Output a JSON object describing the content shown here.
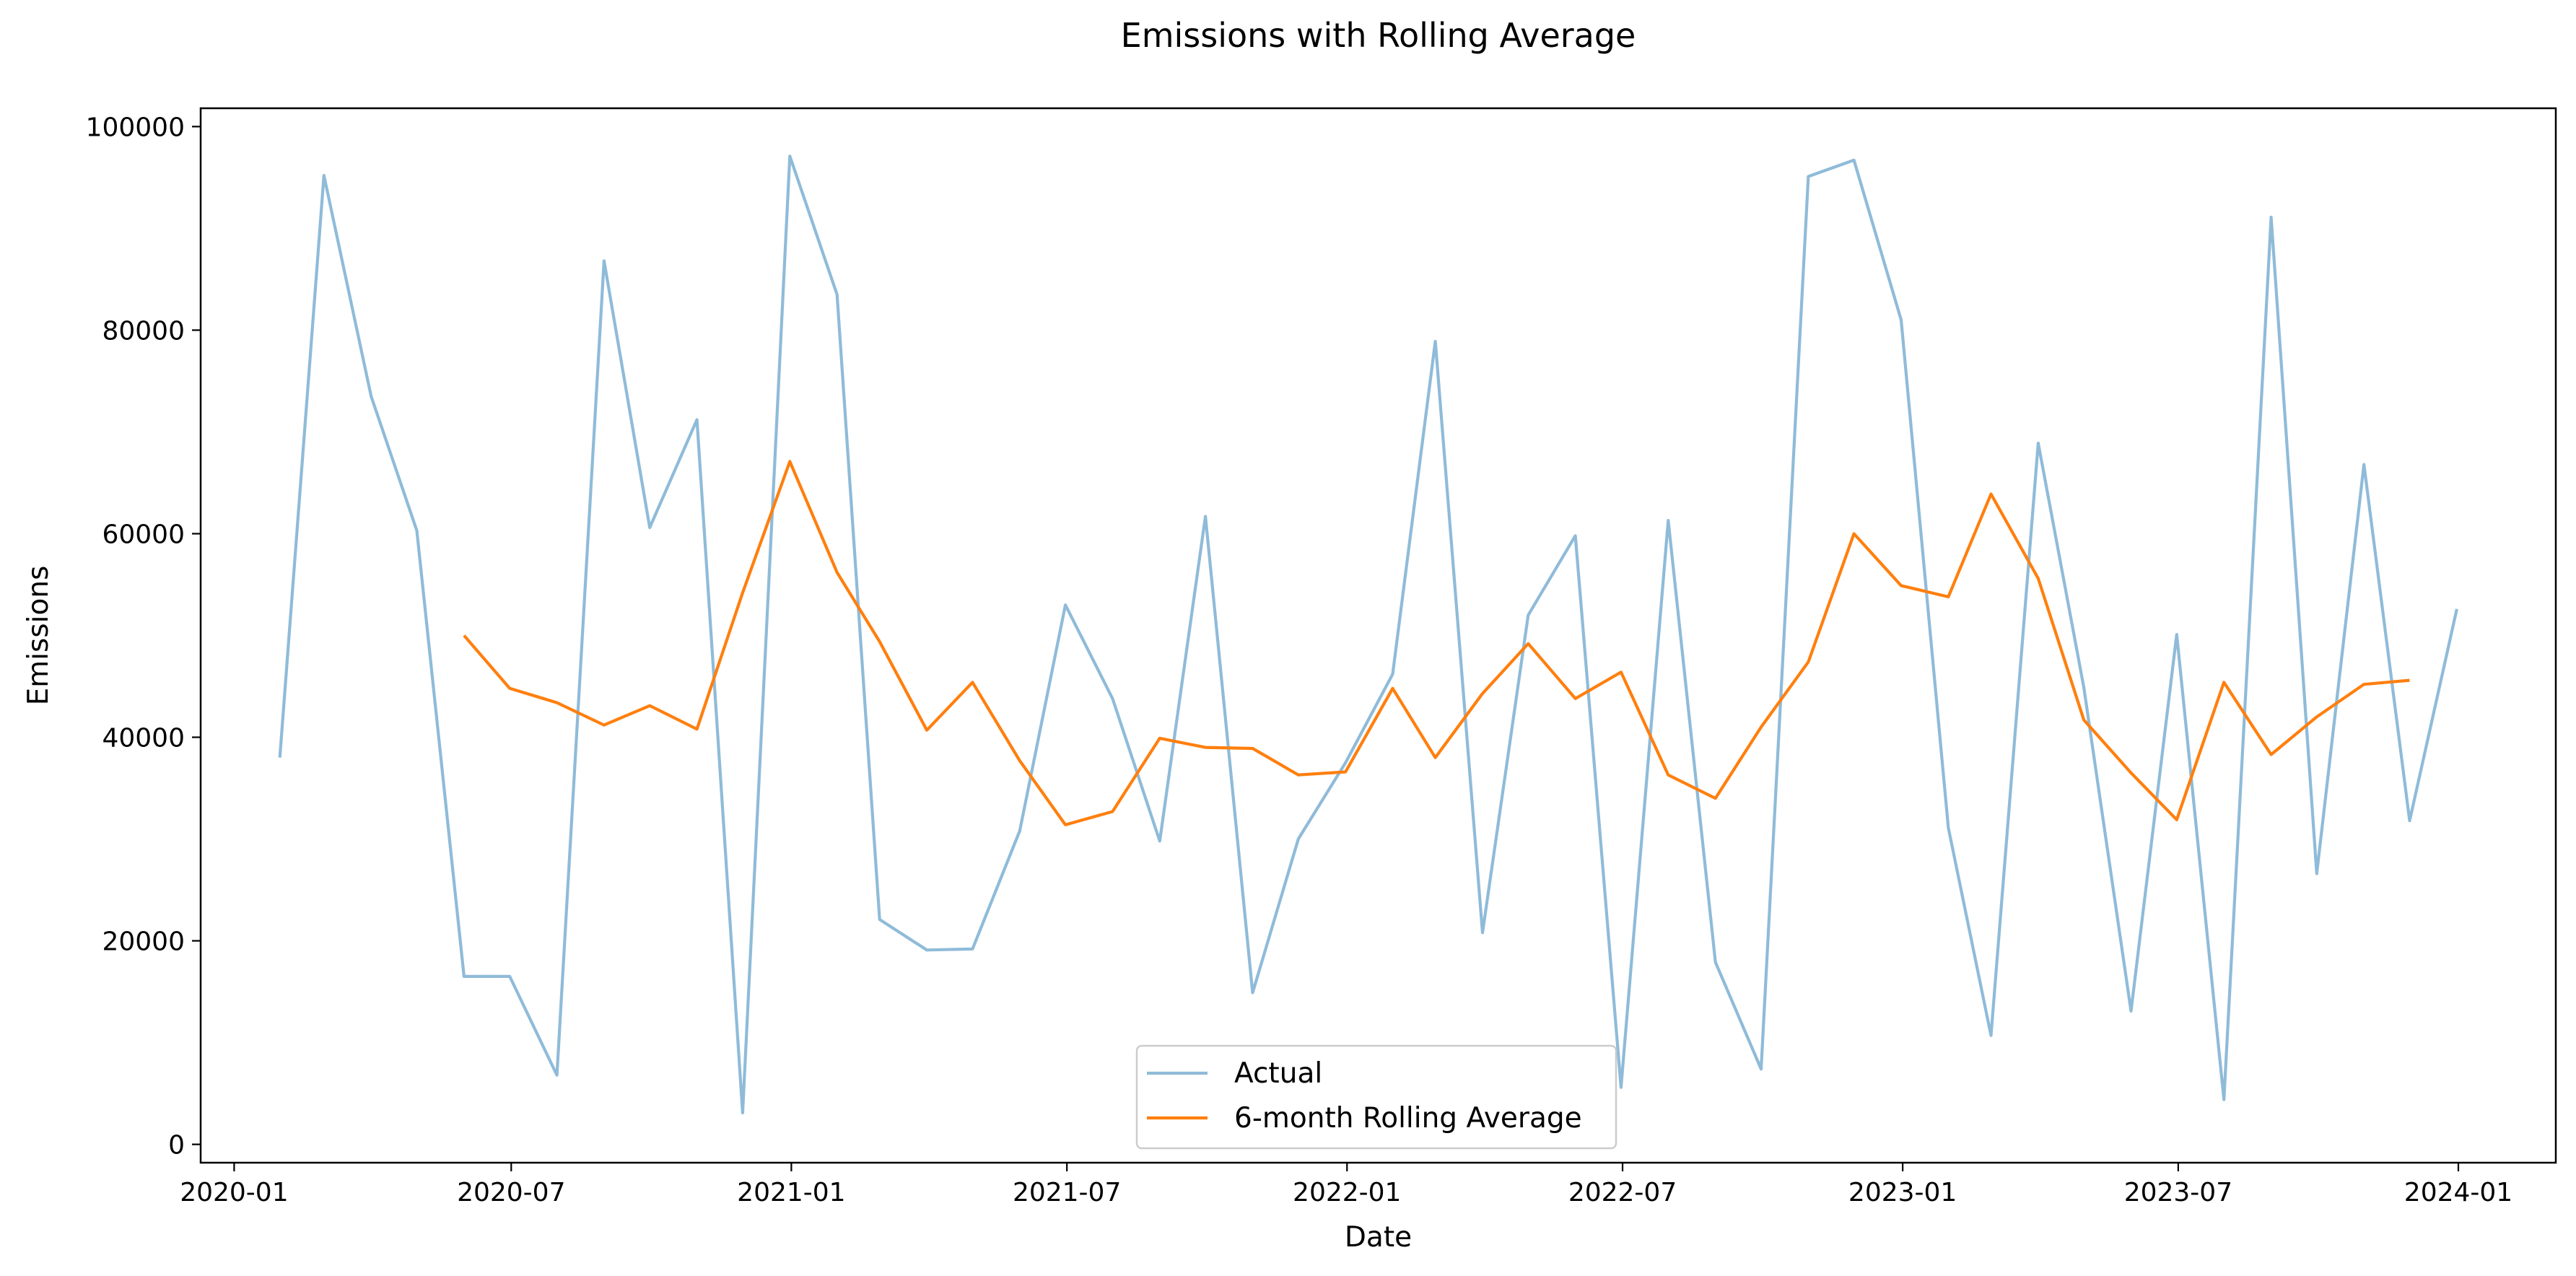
{
  "chart_data": {
    "type": "line",
    "title": "Emissions with Rolling Average",
    "xlabel": "Date",
    "ylabel": "Emissions",
    "x_ticks": [
      "2020-01",
      "2020-07",
      "2021-01",
      "2021-07",
      "2022-01",
      "2022-07",
      "2023-01",
      "2023-07",
      "2024-01"
    ],
    "y_ticks": [
      0,
      20000,
      40000,
      60000,
      80000,
      100000
    ],
    "xlim": [
      "2019-12-10",
      "2024-03-05"
    ],
    "ylim": [
      -1800,
      101800
    ],
    "grid": false,
    "legend_position": "lower-center",
    "x": [
      "2020-01-31",
      "2020-02-29",
      "2020-03-31",
      "2020-04-30",
      "2020-05-31",
      "2020-06-30",
      "2020-07-31",
      "2020-08-31",
      "2020-09-30",
      "2020-10-31",
      "2020-11-30",
      "2020-12-31",
      "2021-01-31",
      "2021-02-28",
      "2021-03-31",
      "2021-04-30",
      "2021-05-31",
      "2021-06-30",
      "2021-07-31",
      "2021-08-31",
      "2021-09-30",
      "2021-10-31",
      "2021-11-30",
      "2021-12-31",
      "2022-01-31",
      "2022-02-28",
      "2022-03-31",
      "2022-04-30",
      "2022-05-31",
      "2022-06-30",
      "2022-07-31",
      "2022-08-31",
      "2022-09-30",
      "2022-10-31",
      "2022-11-30",
      "2022-12-31",
      "2023-01-31",
      "2023-02-28",
      "2023-03-31",
      "2023-04-30",
      "2023-05-31",
      "2023-06-30",
      "2023-07-31",
      "2023-08-31",
      "2023-09-30",
      "2023-10-31",
      "2023-11-30",
      "2023-12-31"
    ],
    "series": [
      {
        "name": "Actual",
        "color": "#1f77b4",
        "alpha": 0.5,
        "values": [
          38000,
          95200,
          73500,
          60300,
          16500,
          16500,
          6800,
          86800,
          60600,
          71200,
          3100,
          97100,
          83500,
          22100,
          19100,
          19200,
          30800,
          53000,
          43800,
          29800,
          61700,
          14900,
          30000,
          37500,
          46200,
          78900,
          20800,
          52000,
          59800,
          5600,
          61300,
          17900,
          7400,
          95100,
          96700,
          81000,
          31100,
          10700,
          68900,
          44900,
          13100,
          50100,
          4400,
          91100,
          26600,
          66800,
          31800,
          52600
        ]
      },
      {
        "name": "6-month Rolling Average",
        "color": "#ff7f0e",
        "alpha": 1,
        "values": [
          null,
          null,
          null,
          null,
          50000,
          44800,
          43400,
          41200,
          43100,
          40800,
          54200,
          67100,
          56200,
          49400,
          40700,
          45400,
          37700,
          31400,
          32700,
          39900,
          39000,
          38900,
          36300,
          36600,
          44800,
          38000,
          44300,
          49200,
          43800,
          46400,
          36300,
          34000,
          41000,
          47400,
          60000,
          54900,
          53800,
          63900,
          55600,
          41700,
          36500,
          31900,
          45400,
          38300,
          42000,
          45200,
          45600,
          null
        ]
      }
    ]
  }
}
